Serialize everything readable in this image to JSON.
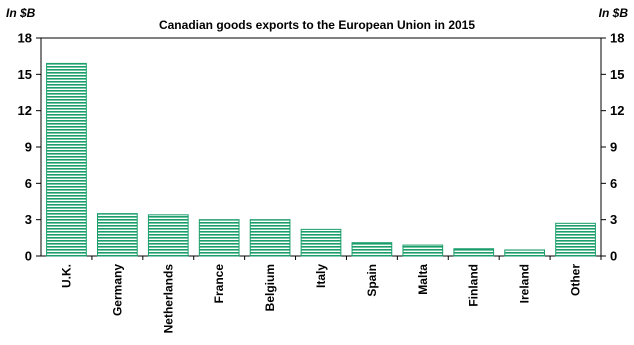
{
  "chart_data": {
    "type": "bar",
    "title": "Canadian goods exports to the European Union in 2015",
    "ylabel_left": "In $B",
    "ylabel_right": "In $B",
    "categories": [
      "U.K.",
      "Germany",
      "Netherlands",
      "France",
      "Belgium",
      "Italy",
      "Spain",
      "Malta",
      "Finland",
      "Ireland",
      "Other"
    ],
    "values": [
      15.9,
      3.5,
      3.4,
      3.0,
      3.0,
      2.2,
      1.1,
      0.9,
      0.6,
      0.5,
      2.7
    ],
    "ylim": [
      0,
      18
    ],
    "yticks": [
      "0",
      "3",
      "6",
      "9",
      "12",
      "15",
      "18"
    ],
    "bar_color": "#1a9e6a",
    "bar_fill_pattern": "horizontal-stripes",
    "grid": false,
    "legend": "none"
  }
}
